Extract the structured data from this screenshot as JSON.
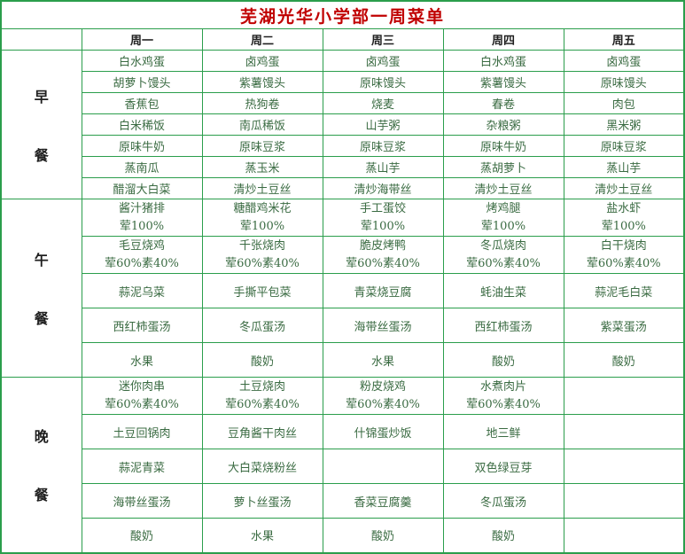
{
  "title": "芜湖光华小学部一周菜单",
  "header": {
    "days": [
      "周一",
      "周二",
      "周三",
      "周四",
      "周五"
    ]
  },
  "sections": [
    {
      "name": "breakfast",
      "label": "早餐",
      "label_chars": [
        "早",
        "餐"
      ],
      "rows": [
        [
          "白水鸡蛋",
          "卤鸡蛋",
          "卤鸡蛋",
          "白水鸡蛋",
          "卤鸡蛋"
        ],
        [
          "胡萝卜馒头",
          "紫薯馒头",
          "原味馒头",
          "紫薯馒头",
          "原味馒头"
        ],
        [
          "香蕉包",
          "热狗卷",
          "烧麦",
          "春卷",
          "肉包"
        ],
        [
          "白米稀饭",
          "南瓜稀饭",
          "山芋粥",
          "杂粮粥",
          "黑米粥"
        ],
        [
          "原味牛奶",
          "原味豆浆",
          "原味豆浆",
          "原味牛奶",
          "原味豆浆"
        ],
        [
          "蒸南瓜",
          "蒸玉米",
          "蒸山芋",
          "蒸胡萝卜",
          "蒸山芋"
        ],
        [
          "醋溜大白菜",
          "清炒土豆丝",
          "清炒海带丝",
          "清炒土豆丝",
          "清炒土豆丝"
        ]
      ]
    },
    {
      "name": "lunch",
      "label": "午餐",
      "label_chars": [
        "午",
        "餐"
      ],
      "rows": [
        [
          [
            "酱汁猪排",
            "荤100%"
          ],
          [
            "糖醋鸡米花",
            "荤100%"
          ],
          [
            "手工蛋饺",
            "荤100%"
          ],
          [
            "烤鸡腿",
            "荤100%"
          ],
          [
            "盐水虾",
            "荤100%"
          ]
        ],
        [
          [
            "毛豆烧鸡",
            "荤60%素40%"
          ],
          [
            "千张烧肉",
            "荤60%素40%"
          ],
          [
            "脆皮烤鸭",
            "荤60%素40%"
          ],
          [
            "冬瓜烧肉",
            "荤60%素40%"
          ],
          [
            "白干烧肉",
            "荤60%素40%"
          ]
        ],
        [
          "蒜泥乌菜",
          "手撕平包菜",
          "青菜烧豆腐",
          "蚝油生菜",
          "蒜泥毛白菜"
        ],
        [
          "西红柿蛋汤",
          "冬瓜蛋汤",
          "海带丝蛋汤",
          "西红柿蛋汤",
          "紫菜蛋汤"
        ],
        [
          "水果",
          "酸奶",
          "水果",
          "酸奶",
          "酸奶"
        ]
      ]
    },
    {
      "name": "dinner",
      "label": "晚餐",
      "label_chars": [
        "晚",
        "餐"
      ],
      "rows": [
        [
          [
            "迷你肉串",
            "荤60%素40%"
          ],
          [
            "土豆烧肉",
            "荤60%素40%"
          ],
          [
            "粉皮烧鸡",
            "荤60%素40%"
          ],
          [
            "水煮肉片",
            "荤60%素40%"
          ],
          ""
        ],
        [
          "土豆回锅肉",
          "豆角酱干肉丝",
          "什锦蛋炒饭",
          "地三鲜",
          ""
        ],
        [
          "蒜泥青菜",
          "大白菜烧粉丝",
          "",
          "双色绿豆芽",
          ""
        ],
        [
          "海带丝蛋汤",
          "萝卜丝蛋汤",
          "香菜豆腐羹",
          "冬瓜蛋汤",
          ""
        ],
        [
          "酸奶",
          "水果",
          "酸奶",
          "酸奶",
          ""
        ]
      ]
    }
  ],
  "colors": {
    "border": "#2b9e4c",
    "title_text": "#c00000",
    "header_text": "#1f1f1f",
    "cell_text": "#3a6b42"
  }
}
